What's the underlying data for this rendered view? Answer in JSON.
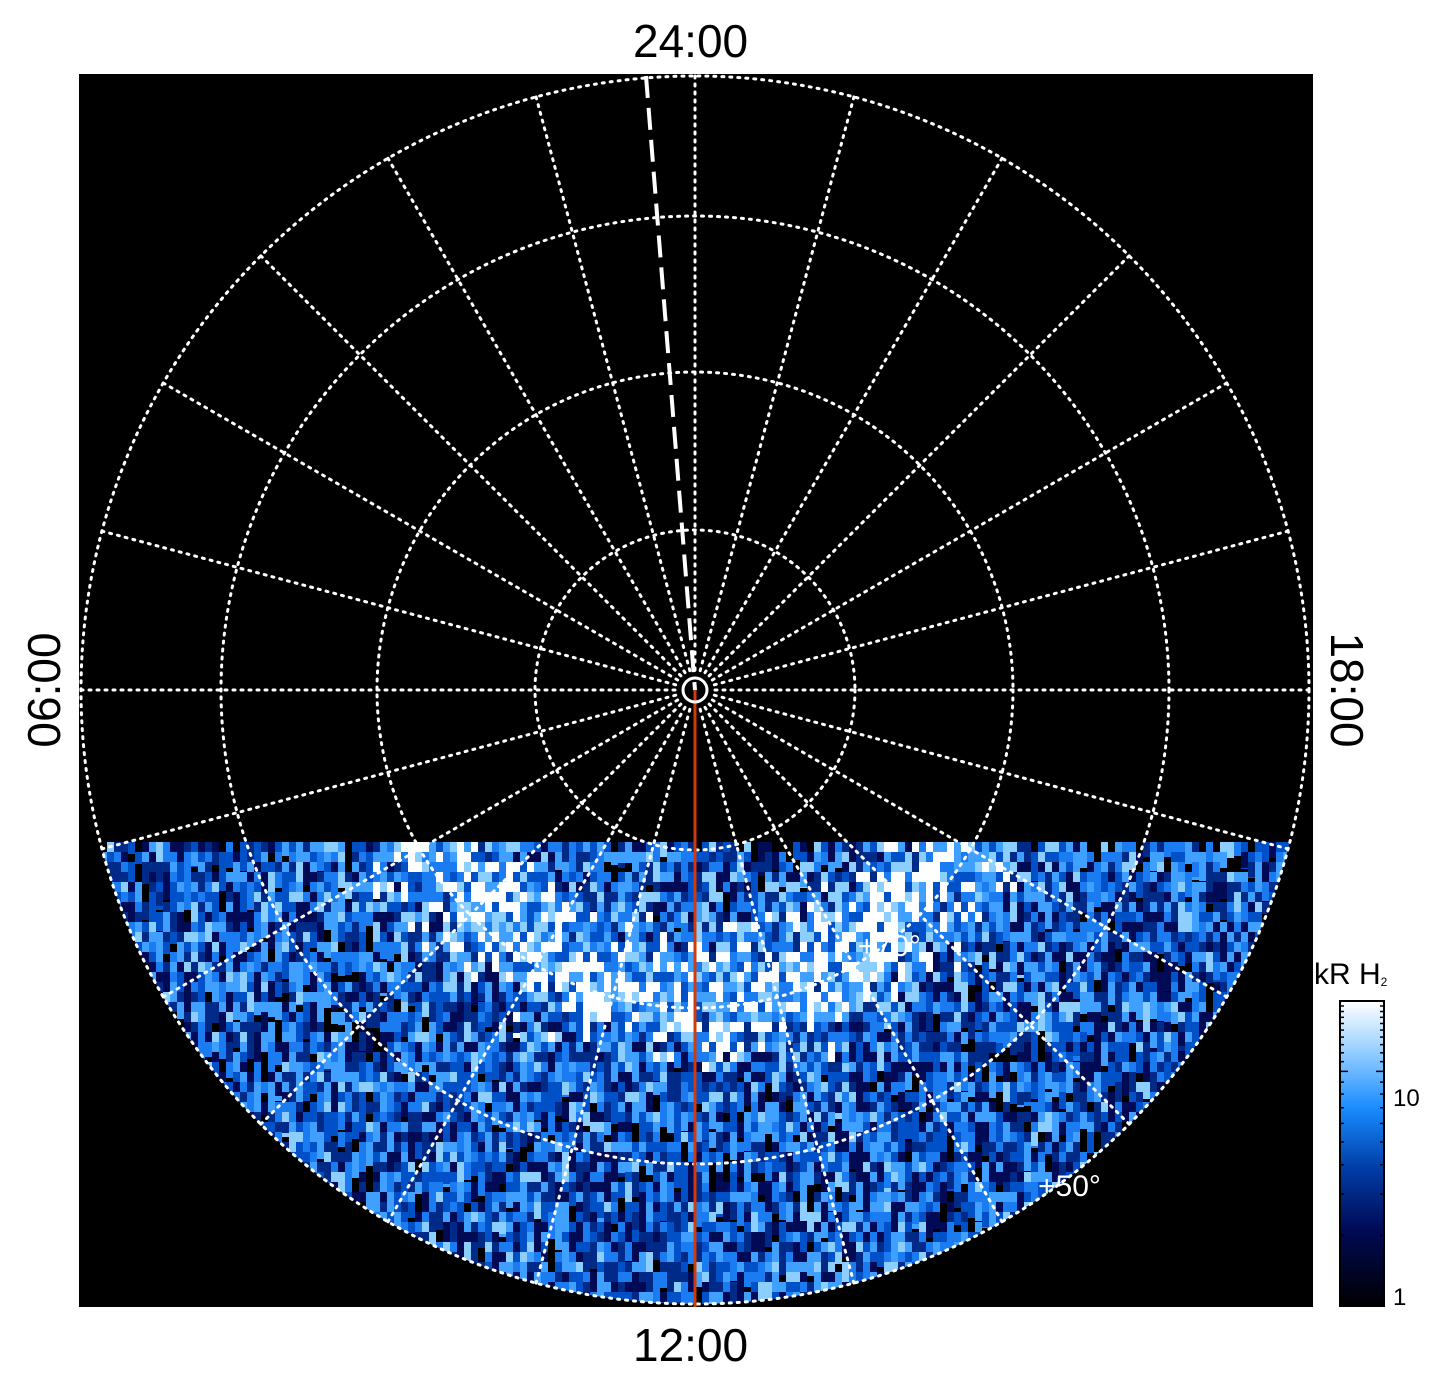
{
  "local_time_labels": {
    "top": "24:00",
    "bottom": "12:00",
    "left": "06:00",
    "right": "18:00"
  },
  "latitude_labels": {
    "inner": "+70°",
    "outer": "+50°"
  },
  "colorbar": {
    "title": "kR H",
    "title_subscript": "2",
    "ticks": [
      "10",
      "1"
    ],
    "scale": "log",
    "colors": [
      "#000000",
      "#000a55",
      "#003ca6",
      "#1a8cff",
      "#9fd4ff",
      "#ffffff"
    ]
  },
  "colors": {
    "background": "#000000",
    "grid": "#ffffff",
    "meridian_line": "#d23a0a",
    "page": "#ffffff"
  }
}
